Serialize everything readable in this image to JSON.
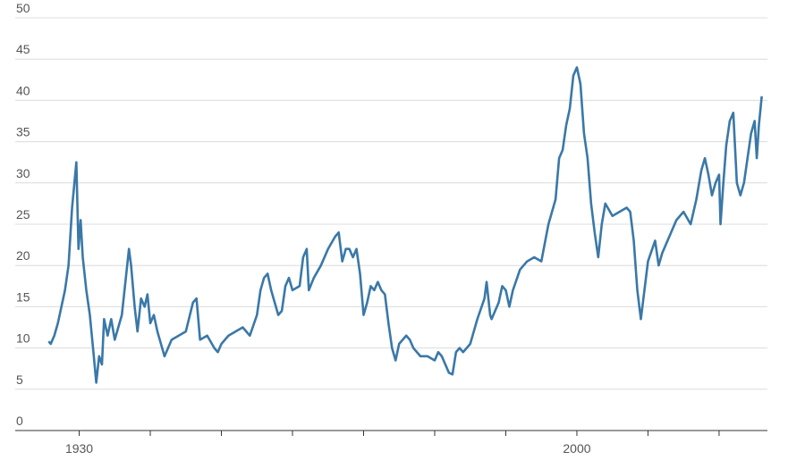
{
  "chart_data": {
    "type": "line",
    "x": [
      1925.7,
      1926,
      1926.5,
      1927,
      1928,
      1928.5,
      1929,
      1929.6,
      1929.9,
      1930.2,
      1930.5,
      1931,
      1931.5,
      1932,
      1932.4,
      1932.8,
      1933.2,
      1933.5,
      1934,
      1934.5,
      1935,
      1936,
      1936.5,
      1937,
      1937.3,
      1937.8,
      1938.2,
      1938.7,
      1939.2,
      1939.6,
      1940,
      1940.5,
      1941,
      1942,
      1942.5,
      1943,
      1944,
      1945,
      1946,
      1946.5,
      1947,
      1948,
      1949,
      1949.5,
      1950,
      1951,
      1952,
      1953,
      1954,
      1955,
      1955.5,
      1956,
      1956.5,
      1957,
      1958,
      1958.5,
      1959,
      1959.5,
      1960,
      1961,
      1961.5,
      1962,
      1962.3,
      1963,
      1964,
      1965,
      1966,
      1966.5,
      1967,
      1967.5,
      1968,
      1968.5,
      1969,
      1969.5,
      1970,
      1970.5,
      1971,
      1971.5,
      1972,
      1972.5,
      1973,
      1973.5,
      1974,
      1974.5,
      1975,
      1976,
      1976.5,
      1977,
      1978,
      1979,
      1980,
      1980.5,
      1981,
      1982,
      1982.5,
      1983,
      1983.5,
      1984,
      1985,
      1986,
      1987,
      1987.3,
      1987.8,
      1988,
      1989,
      1989.5,
      1990,
      1990.5,
      1991,
      1992,
      1993,
      1994,
      1995,
      1996,
      1997,
      1997.5,
      1998,
      1998.5,
      1999,
      1999.5,
      2000,
      2000.5,
      2001,
      2001.5,
      2002,
      2002.5,
      2003,
      2003.5,
      2004,
      2005,
      2006,
      2007,
      2007.5,
      2008,
      2008.5,
      2009,
      2009.5,
      2010,
      2011,
      2011.5,
      2012,
      2013,
      2014,
      2015,
      2016,
      2016.8,
      2017.5,
      2018,
      2018.5,
      2019,
      2019.5,
      2020,
      2020.2,
      2020.6,
      2021,
      2021.5,
      2022,
      2022.5,
      2023,
      2023.5,
      2024,
      2024.5,
      2025,
      2025.3,
      2025.6,
      2026
    ],
    "series": [
      {
        "color": "#3a78a8",
        "values": [
          10.8,
          10.5,
          11.5,
          13,
          17,
          20,
          27,
          32.5,
          22,
          25.5,
          21,
          17,
          14,
          9.5,
          5.8,
          9,
          8,
          13.5,
          11.5,
          13.5,
          11,
          14,
          18,
          22,
          20,
          15,
          12,
          16,
          15,
          16.5,
          13,
          14,
          12,
          9,
          10,
          11,
          11.5,
          12,
          15.5,
          16,
          11,
          11.5,
          10,
          9.5,
          10.5,
          11.5,
          12,
          12.5,
          11.5,
          14,
          17,
          18.5,
          19,
          17,
          14,
          14.5,
          17.5,
          18.5,
          17,
          17.5,
          21,
          22,
          17,
          18.5,
          20,
          22,
          23.5,
          24,
          20.5,
          22,
          22,
          21,
          22,
          19,
          14,
          15.5,
          17.5,
          17,
          18,
          17,
          16.5,
          13,
          10,
          8.5,
          10.5,
          11.5,
          11,
          10,
          9,
          9,
          8.5,
          9.5,
          9,
          7,
          6.8,
          9.5,
          10,
          9.5,
          10.5,
          13.5,
          16,
          18,
          14,
          13.5,
          15.5,
          17.5,
          17,
          15,
          17,
          19.5,
          20.5,
          21,
          20.5,
          25,
          28,
          33,
          34,
          37,
          39,
          43,
          44,
          42,
          36,
          33,
          27.5,
          24,
          21,
          25,
          27.5,
          26,
          26.5,
          27,
          26.5,
          23,
          17,
          13.5,
          17,
          20.5,
          23,
          20,
          21.5,
          23.5,
          25.5,
          26.5,
          25,
          28,
          31.5,
          33,
          31,
          28.5,
          30,
          31,
          25,
          30,
          34.5,
          37.5,
          38.5,
          30,
          28.5,
          30,
          33,
          36,
          37.5,
          33,
          37,
          40.5
        ]
      }
    ],
    "xlim": [
      1921,
      2026.8
    ],
    "xticks": [
      1930,
      2000
    ],
    "xminor_ticks": [
      1940,
      1950,
      1960,
      1970,
      1980,
      1990,
      2010,
      2020
    ],
    "ylim": [
      0,
      50
    ],
    "yticks": [
      0,
      5,
      10,
      15,
      20,
      25,
      30,
      35,
      40,
      45,
      50
    ],
    "grid": true
  }
}
